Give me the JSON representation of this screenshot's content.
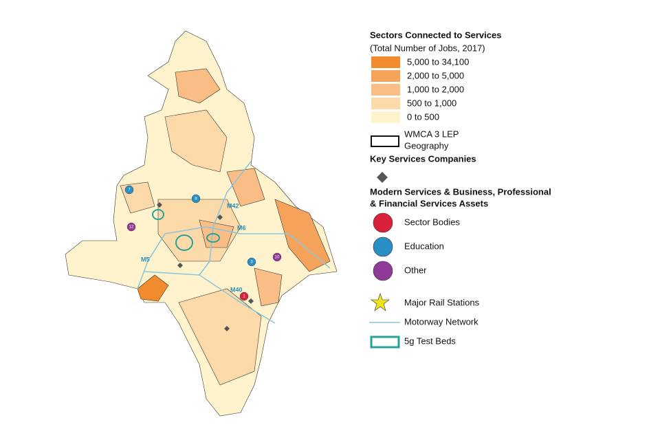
{
  "legend": {
    "title": "Sectors Connected to Services",
    "subtitle": "(Total Number of Jobs, 2017)",
    "bins": [
      "5,000 to 34,100",
      "2,000 to 5,000",
      "1,000 to 2,000",
      "500 to 1,000",
      "0 to 500"
    ],
    "boundary": [
      "WMCA 3 LEP",
      "Geography"
    ],
    "companies_heading": "Key Services Companies",
    "assets_heading": [
      "Modern Services & Business, Professional",
      "& Financial Services Assets"
    ],
    "assets": [
      "Sector Bodies",
      "Education",
      "Other"
    ],
    "rail": "Major Rail Stations",
    "motorway": "Motorway Network",
    "testbeds": "5g Test Beds"
  },
  "map": {
    "motorways": [
      "M5",
      "M6",
      "M42",
      "M40"
    ],
    "markers": [
      "12",
      "8",
      "1",
      "3",
      "10",
      "7"
    ]
  }
}
